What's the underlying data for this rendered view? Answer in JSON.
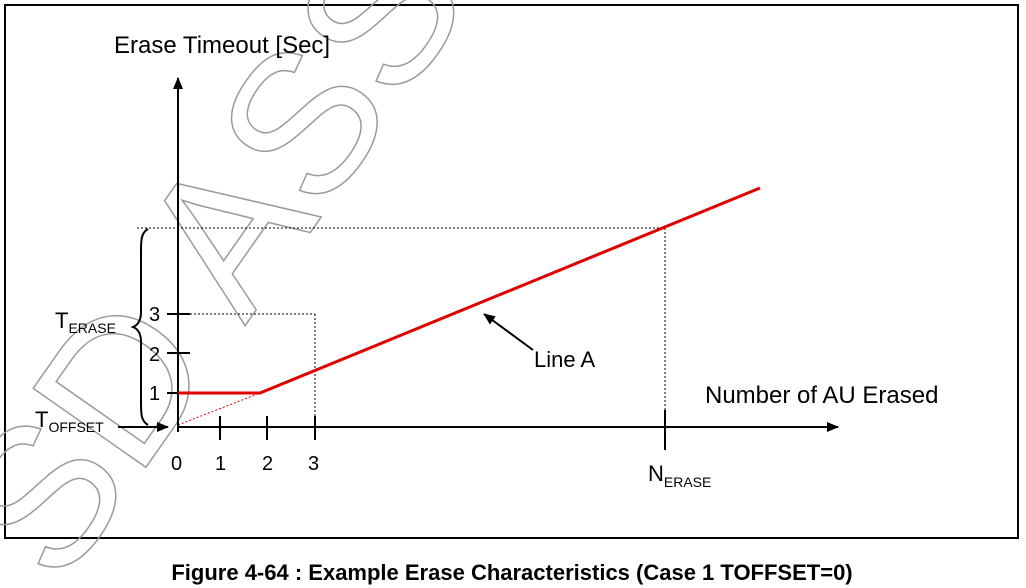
{
  "diagram": {
    "y_axis_label": "Erase Timeout [Sec]",
    "x_axis_label": "Number of AU Erased",
    "x_ticks": [
      "0",
      "1",
      "2",
      "3"
    ],
    "y_ticks": [
      "1",
      "2",
      "3"
    ],
    "t_erase": {
      "main": "T",
      "sub": "ERASE"
    },
    "t_offset": {
      "main": "T",
      "sub": "OFFSET"
    },
    "n_erase": {
      "main": "N",
      "sub": "ERASE"
    },
    "line_label": "Line A",
    "line_color": "#e00000",
    "watermark": "SD ASSOCIATION",
    "caption": "Figure 4-64 : Example Erase Characteristics (Case 1 TOFFSET=0)"
  }
}
